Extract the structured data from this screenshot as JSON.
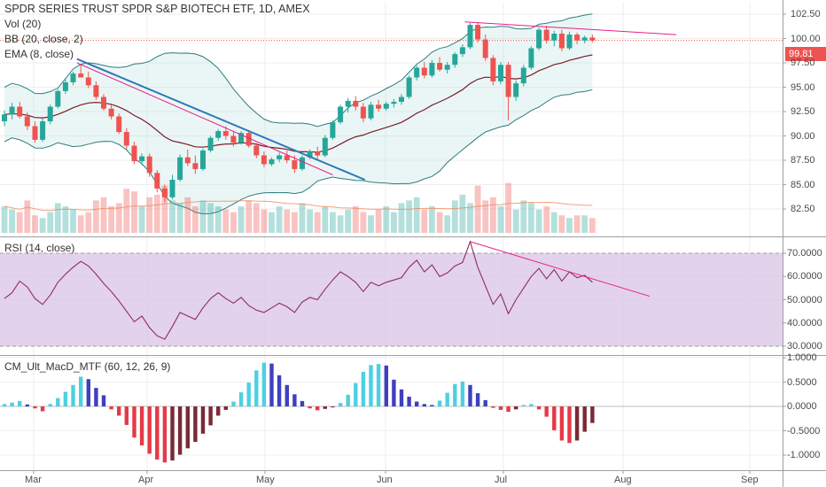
{
  "header": {
    "title": "SPDR SERIES TRUST SPDR S&P BIOTECH ETF, 1D, AMEX",
    "indicators": [
      "Vol (20)",
      "BB (20, close, 2)",
      "EMA (8, close)"
    ]
  },
  "last_price": "99.81",
  "colors": {
    "up": "#26a69a",
    "down": "#ef5350",
    "bb": "#2e7d7d",
    "ema": "#7a1f2b",
    "trend_blue": "#2e78b8",
    "trend_pink": "#e91e8c",
    "rsi_line": "#8e2c5e",
    "rsi_band": "#d9c3e6",
    "macd_pos_strong": "#4dd0e1",
    "macd_pos_weak": "#3f3fbf",
    "macd_neg_strong": "#e63946",
    "macd_neg_weak": "#7a2a36"
  },
  "chart_data": [
    {
      "type": "candlestick",
      "title": "SPDR SERIES TRUST SPDR S&P BIOTECH ETF, 1D, AMEX",
      "x_tick_labels": [
        "Mar",
        "Apr",
        "May",
        "Jun",
        "Jul",
        "Aug",
        "Sep"
      ],
      "y_tick_labels": [
        "102.50",
        "100.00",
        "97.50",
        "95.00",
        "92.50",
        "90.00",
        "87.50",
        "85.00",
        "82.50"
      ],
      "ylim": [
        80.8,
        103.8
      ],
      "grid": true,
      "reference_line": 99.81,
      "overlays": [
        "Bollinger Bands (20, close, 2)",
        "EMA (8, close)",
        "Volume (20)"
      ],
      "ohlc": [
        [
          91.5,
          92.6,
          91.0,
          92.2
        ],
        [
          92.2,
          93.4,
          91.7,
          93.0
        ],
        [
          93.0,
          93.5,
          91.8,
          92.0
        ],
        [
          92.0,
          92.4,
          90.6,
          91.0
        ],
        [
          91.0,
          91.5,
          89.3,
          89.6
        ],
        [
          89.6,
          91.8,
          89.4,
          91.5
        ],
        [
          91.5,
          93.2,
          91.2,
          93.0
        ],
        [
          93.0,
          94.8,
          92.8,
          94.6
        ],
        [
          94.6,
          95.8,
          94.3,
          95.5
        ],
        [
          95.5,
          96.6,
          95.2,
          96.4
        ],
        [
          96.4,
          97.4,
          96.0,
          96.0
        ],
        [
          96.0,
          96.6,
          94.9,
          95.2
        ],
        [
          95.2,
          95.6,
          93.7,
          94.0
        ],
        [
          94.0,
          94.3,
          92.6,
          92.8
        ],
        [
          92.8,
          93.2,
          91.7,
          92.0
        ],
        [
          92.0,
          92.3,
          90.2,
          90.4
        ],
        [
          90.4,
          90.8,
          88.6,
          89.0
        ],
        [
          89.0,
          89.4,
          87.1,
          87.4
        ],
        [
          87.4,
          88.2,
          87.0,
          87.9
        ],
        [
          87.9,
          88.2,
          85.8,
          86.2
        ],
        [
          86.2,
          86.5,
          84.2,
          84.6
        ],
        [
          84.6,
          85.0,
          83.2,
          83.7
        ],
        [
          83.7,
          86.0,
          83.5,
          85.5
        ],
        [
          85.5,
          88.1,
          85.3,
          87.8
        ],
        [
          87.8,
          88.6,
          86.9,
          87.2
        ],
        [
          87.2,
          88.0,
          86.1,
          86.6
        ],
        [
          86.6,
          88.7,
          86.4,
          88.5
        ],
        [
          88.5,
          90.0,
          88.3,
          89.8
        ],
        [
          89.8,
          90.7,
          89.5,
          90.5
        ],
        [
          90.5,
          91.0,
          89.6,
          90.0
        ],
        [
          90.0,
          90.4,
          88.9,
          89.3
        ],
        [
          89.3,
          90.5,
          89.1,
          90.3
        ],
        [
          90.3,
          90.6,
          88.8,
          89.0
        ],
        [
          89.0,
          89.3,
          87.7,
          88.0
        ],
        [
          88.0,
          88.4,
          86.8,
          87.1
        ],
        [
          87.1,
          87.8,
          86.9,
          87.6
        ],
        [
          87.6,
          88.3,
          87.3,
          88.0
        ],
        [
          88.0,
          88.5,
          87.2,
          87.5
        ],
        [
          87.5,
          88.0,
          86.2,
          86.6
        ],
        [
          86.6,
          88.0,
          86.4,
          87.8
        ],
        [
          87.8,
          88.6,
          87.6,
          88.4
        ],
        [
          88.4,
          88.9,
          87.6,
          88.0
        ],
        [
          88.0,
          90.1,
          87.8,
          89.8
        ],
        [
          89.8,
          91.6,
          89.6,
          91.4
        ],
        [
          91.4,
          93.2,
          91.2,
          93.0
        ],
        [
          93.0,
          93.9,
          92.4,
          93.6
        ],
        [
          93.6,
          94.1,
          92.6,
          93.0
        ],
        [
          93.0,
          93.4,
          91.4,
          91.8
        ],
        [
          91.8,
          93.5,
          91.6,
          93.2
        ],
        [
          93.2,
          93.7,
          92.5,
          92.8
        ],
        [
          92.8,
          93.5,
          92.6,
          93.3
        ],
        [
          93.3,
          93.8,
          92.9,
          93.5
        ],
        [
          93.5,
          94.3,
          93.2,
          94.0
        ],
        [
          94.0,
          96.2,
          93.8,
          96.0
        ],
        [
          96.0,
          97.2,
          95.7,
          97.0
        ],
        [
          97.0,
          97.6,
          95.9,
          96.2
        ],
        [
          96.2,
          97.8,
          96.0,
          97.5
        ],
        [
          97.5,
          98.1,
          96.6,
          96.8
        ],
        [
          96.8,
          97.6,
          96.4,
          97.3
        ],
        [
          97.3,
          98.6,
          97.0,
          98.4
        ],
        [
          98.4,
          99.4,
          98.1,
          99.1
        ],
        [
          99.1,
          101.6,
          98.9,
          101.4
        ],
        [
          101.4,
          101.7,
          99.6,
          99.9
        ],
        [
          99.9,
          100.4,
          97.7,
          98.0
        ],
        [
          98.0,
          98.3,
          95.2,
          95.6
        ],
        [
          95.6,
          97.6,
          95.3,
          97.3
        ],
        [
          97.3,
          97.6,
          91.6,
          94.0
        ],
        [
          94.0,
          95.7,
          93.6,
          95.4
        ],
        [
          95.4,
          97.3,
          95.1,
          97.0
        ],
        [
          97.0,
          99.2,
          96.8,
          99.0
        ],
        [
          99.0,
          101.1,
          98.8,
          100.9
        ],
        [
          100.9,
          101.3,
          99.5,
          99.8
        ],
        [
          99.8,
          100.8,
          99.2,
          100.5
        ],
        [
          100.5,
          100.9,
          98.7,
          99.0
        ],
        [
          99.0,
          100.7,
          98.8,
          100.4
        ],
        [
          100.4,
          100.6,
          99.4,
          99.8
        ],
        [
          99.8,
          100.3,
          99.5,
          100.1
        ],
        [
          100.1,
          100.4,
          99.6,
          99.81
        ]
      ],
      "volume": [
        0.5,
        0.44,
        0.39,
        0.61,
        0.33,
        0.28,
        0.39,
        0.56,
        0.5,
        0.44,
        0.33,
        0.39,
        0.61,
        0.67,
        0.5,
        0.56,
        0.83,
        0.78,
        0.5,
        0.67,
        0.72,
        0.89,
        0.61,
        0.56,
        0.67,
        0.5,
        0.61,
        0.56,
        0.5,
        0.44,
        0.39,
        0.5,
        0.61,
        0.56,
        0.44,
        0.39,
        0.5,
        0.44,
        0.39,
        0.56,
        0.44,
        0.39,
        0.5,
        0.39,
        0.33,
        0.44,
        0.5,
        0.39,
        0.33,
        0.44,
        0.5,
        0.39,
        0.56,
        0.61,
        0.67,
        0.44,
        0.5,
        0.39,
        0.33,
        0.61,
        0.72,
        0.56,
        0.89,
        0.61,
        0.67,
        0.5,
        0.94,
        0.44,
        0.61,
        0.56,
        0.44,
        0.5,
        0.39,
        0.33,
        0.28,
        0.33,
        0.33,
        0.28
      ]
    },
    {
      "type": "line",
      "title": "RSI (14, close)",
      "y_tick_labels": [
        "70.0000",
        "60.0000",
        "50.0000",
        "40.0000",
        "30.0000"
      ],
      "ylim": [
        28,
        73
      ],
      "band": [
        30,
        70
      ],
      "grid": true,
      "values": [
        50.5,
        53.0,
        58.0,
        55.5,
        50.5,
        48.0,
        52.0,
        57.5,
        61.0,
        64.0,
        66.5,
        64.5,
        61.0,
        57.0,
        53.5,
        49.5,
        45.0,
        40.5,
        43.0,
        38.0,
        34.5,
        33.0,
        38.5,
        44.5,
        43.0,
        41.5,
        46.5,
        50.5,
        53.0,
        50.5,
        48.5,
        51.0,
        47.5,
        45.5,
        44.5,
        46.5,
        48.5,
        47.0,
        44.5,
        49.0,
        51.0,
        50.0,
        54.5,
        58.5,
        62.0,
        60.0,
        57.5,
        53.5,
        57.5,
        56.0,
        57.5,
        58.5,
        59.5,
        64.0,
        67.0,
        62.0,
        65.0,
        60.0,
        61.5,
        64.5,
        66.0,
        75.0,
        64.0,
        56.0,
        48.0,
        52.5,
        44.0,
        50.0,
        55.0,
        60.0,
        63.5,
        59.0,
        63.0,
        58.0,
        62.0,
        59.5,
        60.5,
        57.5
      ]
    },
    {
      "type": "bar",
      "title": "CM_Ult_MacD_MTF (60, 12, 26, 9)",
      "y_tick_labels": [
        "1.0000",
        "0.5000",
        "0.0000",
        "-0.5000",
        "-1.0000"
      ],
      "ylim": [
        -1.35,
        1.05
      ],
      "zero_line": true,
      "values": [
        0.05,
        0.08,
        0.11,
        0.04,
        -0.04,
        -0.1,
        0.05,
        0.17,
        0.3,
        0.44,
        0.61,
        0.56,
        0.38,
        0.23,
        -0.06,
        -0.19,
        -0.38,
        -0.64,
        -0.8,
        -0.97,
        -1.09,
        -1.15,
        -1.11,
        -0.99,
        -0.86,
        -0.73,
        -0.56,
        -0.39,
        -0.19,
        -0.07,
        0.1,
        0.29,
        0.49,
        0.74,
        0.9,
        0.88,
        0.64,
        0.44,
        0.25,
        0.11,
        -0.04,
        -0.08,
        -0.05,
        -0.02,
        0.07,
        0.24,
        0.48,
        0.71,
        0.85,
        0.87,
        0.84,
        0.55,
        0.35,
        0.2,
        0.1,
        0.05,
        0.03,
        0.12,
        0.28,
        0.46,
        0.51,
        0.44,
        0.27,
        0.13,
        -0.03,
        -0.07,
        -0.11,
        -0.06,
        0.03,
        0.05,
        -0.06,
        -0.21,
        -0.49,
        -0.7,
        -0.75,
        -0.7,
        -0.52,
        -0.34
      ]
    }
  ]
}
